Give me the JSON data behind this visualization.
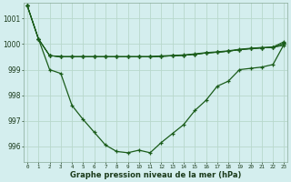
{
  "background_color": "#d4eeee",
  "grid_color": "#b8d8cc",
  "line_color": "#1a5c1a",
  "xlabel": "Graphe pression niveau de la mer (hPa)",
  "ylim": [
    995.4,
    1001.6
  ],
  "yticks": [
    996,
    997,
    998,
    999,
    1000,
    1001
  ],
  "x_ticks": [
    0,
    1,
    2,
    3,
    4,
    5,
    6,
    7,
    8,
    9,
    10,
    11,
    12,
    13,
    14,
    15,
    16,
    17,
    18,
    19,
    20,
    21,
    22,
    23
  ],
  "series_deep": [
    1001.5,
    1000.2,
    999.0,
    998.85,
    997.6,
    997.05,
    996.55,
    996.05,
    995.8,
    995.75,
    995.85,
    995.75,
    996.15,
    996.5,
    996.85,
    997.4,
    997.8,
    998.35,
    998.55,
    999.0,
    999.05,
    999.1,
    999.2,
    1000.0
  ],
  "series_flat1": [
    1001.5,
    1000.2,
    999.55,
    999.5,
    999.5,
    999.5,
    999.5,
    999.5,
    999.5,
    999.5,
    999.5,
    999.5,
    999.52,
    999.54,
    999.56,
    999.6,
    999.65,
    999.68,
    999.72,
    999.78,
    999.82,
    999.85,
    999.87,
    999.95
  ],
  "series_flat2": [
    1001.5,
    1000.2,
    999.55,
    999.5,
    999.5,
    999.5,
    999.5,
    999.5,
    999.5,
    999.5,
    999.5,
    999.5,
    999.52,
    999.54,
    999.56,
    999.6,
    999.65,
    999.68,
    999.72,
    999.78,
    999.82,
    999.85,
    999.87,
    1000.0
  ],
  "series_flat3": [
    1001.5,
    1000.2,
    999.55,
    999.5,
    999.5,
    999.5,
    999.5,
    999.5,
    999.5,
    999.5,
    999.5,
    999.5,
    999.52,
    999.54,
    999.56,
    999.6,
    999.65,
    999.68,
    999.72,
    999.78,
    999.82,
    999.85,
    999.87,
    1000.05
  ],
  "series_flat4": [
    1001.5,
    1000.2,
    999.55,
    999.52,
    999.52,
    999.52,
    999.52,
    999.52,
    999.52,
    999.52,
    999.52,
    999.52,
    999.54,
    999.56,
    999.58,
    999.62,
    999.67,
    999.7,
    999.74,
    999.8,
    999.84,
    999.87,
    999.89,
    1000.1
  ]
}
